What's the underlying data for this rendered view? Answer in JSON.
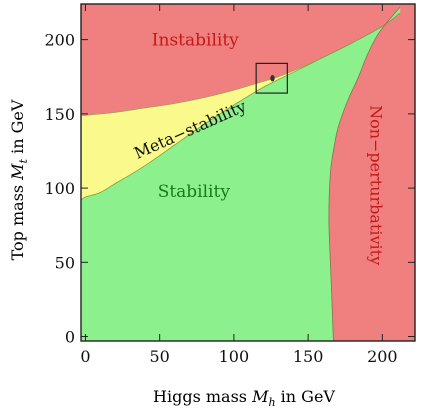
{
  "chart_data": {
    "type": "area",
    "title": "",
    "xlabel": "Higgs mass M_h in GeV",
    "xlabel_parts": {
      "prefix": "Higgs mass ",
      "symbol": "M",
      "subscript": "h",
      "suffix": " in GeV"
    },
    "ylabel": "Top mass M_t in GeV",
    "ylabel_parts": {
      "prefix": "Top mass ",
      "symbol": "M",
      "subscript": "t",
      "suffix": " in GeV"
    },
    "xlim": [
      -3,
      222
    ],
    "ylim": [
      -3,
      224
    ],
    "xticks": [
      0,
      50,
      100,
      150,
      200
    ],
    "yticks": [
      0,
      50,
      100,
      150,
      200
    ],
    "xtick_labels": [
      "0",
      "50",
      "100",
      "150",
      "200"
    ],
    "ytick_labels": [
      "0",
      "50",
      "100",
      "150",
      "200"
    ],
    "regions": [
      {
        "name": "Instability",
        "color": "#f08080"
      },
      {
        "name": "Meta−stability",
        "color": "#fafa8c"
      },
      {
        "name": "Stability",
        "color": "#8cf08c"
      },
      {
        "name": "Non−perturbativity",
        "color": "#f08080"
      }
    ],
    "boundaries": {
      "instability_meta": {
        "x": [
          -3,
          0,
          20,
          40,
          60,
          80,
          100,
          120,
          130,
          140,
          160,
          180,
          200,
          212
        ],
        "y": [
          149,
          149,
          151,
          154,
          157,
          161,
          166,
          172,
          175,
          179,
          188,
          198,
          209,
          218
        ]
      },
      "meta_stability": {
        "x": [
          -3,
          0,
          10,
          20,
          40,
          60,
          80,
          100,
          120,
          140,
          160,
          180,
          200,
          212
        ],
        "y": [
          92,
          94,
          97,
          103,
          115,
          129,
          143,
          156,
          168,
          178,
          188,
          198,
          209,
          218
        ]
      },
      "stability_nonpert": {
        "x": [
          167,
          166,
          165,
          164,
          165,
          167,
          170,
          174,
          178,
          184,
          190,
          198,
          212
        ],
        "y": [
          -3,
          25,
          50,
          80,
          110,
          125,
          140,
          152,
          162,
          175,
          190,
          205,
          222
        ]
      }
    },
    "highlight_box": {
      "x": [
        115,
        136
      ],
      "y": [
        164,
        184
      ]
    },
    "marker_point": {
      "x": 126,
      "y": 174
    }
  }
}
